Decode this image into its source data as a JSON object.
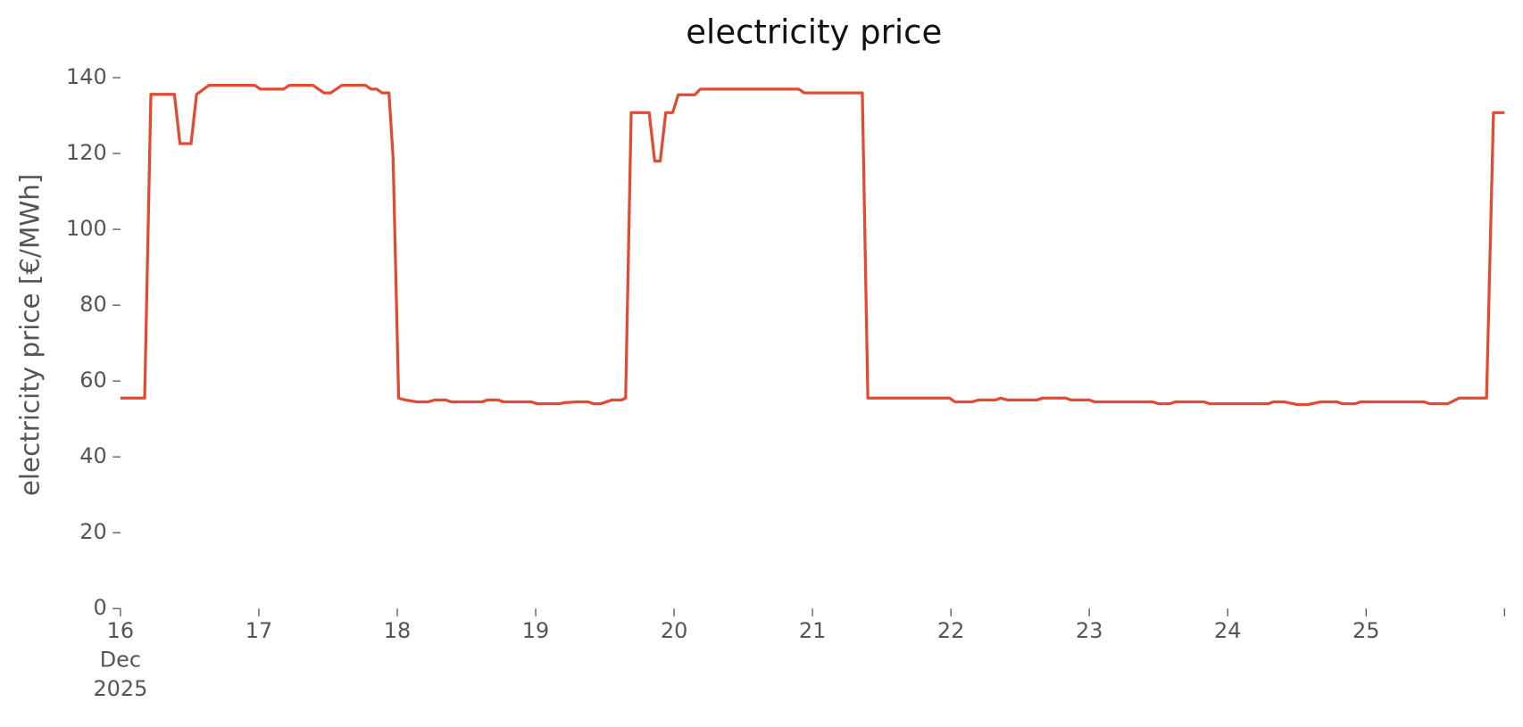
{
  "chart_data": {
    "type": "line",
    "title": "electricity price",
    "ylabel": "electricity price [€/MWh]",
    "xlim": [
      16,
      26
    ],
    "ylim": [
      0,
      140
    ],
    "yticks": [
      0,
      20,
      40,
      60,
      80,
      100,
      120,
      140
    ],
    "xticks": [
      {
        "value": 16,
        "label": "16\nDec\n2025"
      },
      17,
      18,
      19,
      20,
      21,
      22,
      23,
      24,
      25,
      {
        "value": 26,
        "label": null
      }
    ],
    "grid": false,
    "series": [
      {
        "name": "electricity price",
        "color": "#e24a33",
        "x": [
          16.0,
          16.175,
          16.22,
          16.39,
          16.43,
          16.51,
          16.55,
          16.64,
          16.97,
          17.01,
          17.18,
          17.22,
          17.39,
          17.47,
          17.52,
          17.6,
          17.77,
          17.81,
          17.85,
          17.89,
          17.94,
          17.97,
          18.01,
          18.06,
          18.14,
          18.22,
          18.27,
          18.35,
          18.39,
          18.61,
          18.65,
          18.73,
          18.77,
          18.97,
          19.01,
          19.17,
          19.21,
          19.3,
          19.38,
          19.42,
          19.47,
          19.55,
          19.62,
          19.65,
          19.69,
          19.82,
          19.86,
          19.9,
          19.94,
          19.99,
          20.03,
          20.15,
          20.19,
          20.9,
          20.94,
          21.36,
          21.4,
          21.99,
          22.03,
          22.15,
          22.2,
          22.32,
          22.36,
          22.41,
          22.62,
          22.66,
          22.83,
          22.87,
          23.0,
          23.04,
          23.46,
          23.5,
          23.58,
          23.62,
          23.83,
          23.87,
          24.29,
          24.33,
          24.41,
          24.5,
          24.58,
          24.67,
          24.79,
          24.83,
          24.92,
          24.96,
          25.42,
          25.46,
          25.59,
          25.67,
          25.87,
          25.92,
          26.0
        ],
        "values": [
          55.5,
          55.5,
          135.6,
          135.6,
          122.6,
          122.6,
          135.6,
          138,
          138,
          137,
          137,
          138,
          138,
          136,
          136,
          138,
          138,
          137,
          137,
          136,
          136,
          118.8,
          55.5,
          55,
          54.5,
          54.5,
          55,
          55,
          54.5,
          54.5,
          55,
          55,
          54.5,
          54.5,
          54,
          54,
          54.3,
          54.5,
          54.5,
          54,
          54,
          55,
          55,
          55.5,
          130.8,
          130.8,
          118,
          118,
          130.8,
          130.8,
          135.5,
          135.5,
          137,
          137,
          136,
          136,
          55.5,
          55.5,
          54.5,
          54.5,
          55,
          55,
          55.5,
          55,
          55,
          55.5,
          55.5,
          55,
          55,
          54.5,
          54.5,
          54,
          54,
          54.5,
          54.5,
          54,
          54,
          54.5,
          54.5,
          53.8,
          53.8,
          54.5,
          54.5,
          54,
          54,
          54.5,
          54.5,
          54,
          54,
          55.5,
          55.5,
          130.8,
          130.8
        ]
      }
    ]
  }
}
